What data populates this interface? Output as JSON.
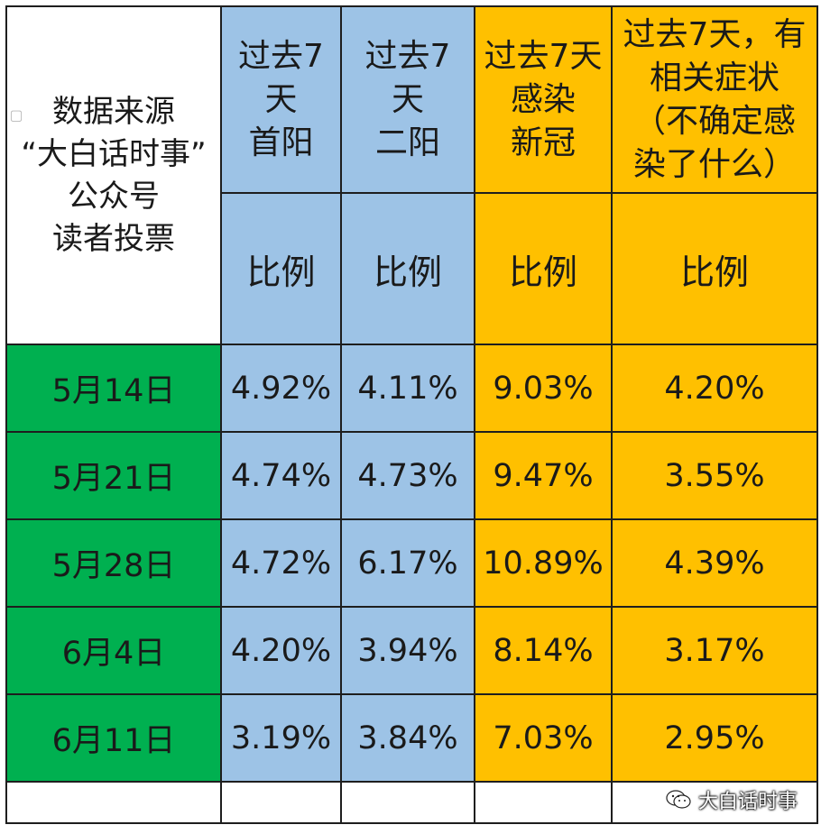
{
  "table": {
    "source_header": "数据来源\n“大白话时事”\n公众号\n读者投票",
    "columns": [
      {
        "header": "过去7\n天\n首阳",
        "sub": "比例",
        "color": "#9dc3e6"
      },
      {
        "header": "过去7\n天\n二阳",
        "sub": "比例",
        "color": "#9dc3e6"
      },
      {
        "header": "过去7天\n感染\n新冠",
        "sub": "比例",
        "color": "#ffc000"
      },
      {
        "header": "过去7天，有\n相关症状\n（不确定感\n染了什么）",
        "sub": "比例",
        "color": "#ffc000"
      }
    ],
    "rows": [
      {
        "date": "5月14日",
        "values": [
          "4.92%",
          "4.11%",
          "9.03%",
          "4.20%"
        ]
      },
      {
        "date": "5月21日",
        "values": [
          "4.74%",
          "4.73%",
          "9.47%",
          "3.55%"
        ]
      },
      {
        "date": "5月28日",
        "values": [
          "4.72%",
          "6.17%",
          "10.89%",
          "4.39%"
        ]
      },
      {
        "date": "6月4日",
        "values": [
          "4.20%",
          "3.94%",
          "8.14%",
          "3.17%"
        ]
      },
      {
        "date": "6月11日",
        "values": [
          "3.19%",
          "3.84%",
          "7.03%",
          "2.95%"
        ]
      }
    ],
    "date_color": "#00b050"
  },
  "watermark": {
    "text": "大白话时事",
    "icon": "wechat-icon"
  },
  "chart_data": {
    "type": "table",
    "title": "",
    "columns": [
      "过去7天首阳 比例",
      "过去7天二阳 比例",
      "过去7天感染新冠 比例",
      "过去7天，有相关症状（不确定感染了什么） 比例"
    ],
    "categories": [
      "5月14日",
      "5月21日",
      "5月28日",
      "6月4日",
      "6月11日"
    ],
    "series": [
      {
        "name": "过去7天首阳",
        "values": [
          4.92,
          4.74,
          4.72,
          4.2,
          3.19
        ]
      },
      {
        "name": "过去7天二阳",
        "values": [
          4.11,
          4.73,
          6.17,
          3.94,
          3.84
        ]
      },
      {
        "name": "过去7天感染新冠",
        "values": [
          9.03,
          9.47,
          10.89,
          8.14,
          7.03
        ]
      },
      {
        "name": "过去7天，有相关症状（不确定感染了什么）",
        "values": [
          4.2,
          3.55,
          4.39,
          3.17,
          2.95
        ]
      }
    ]
  }
}
